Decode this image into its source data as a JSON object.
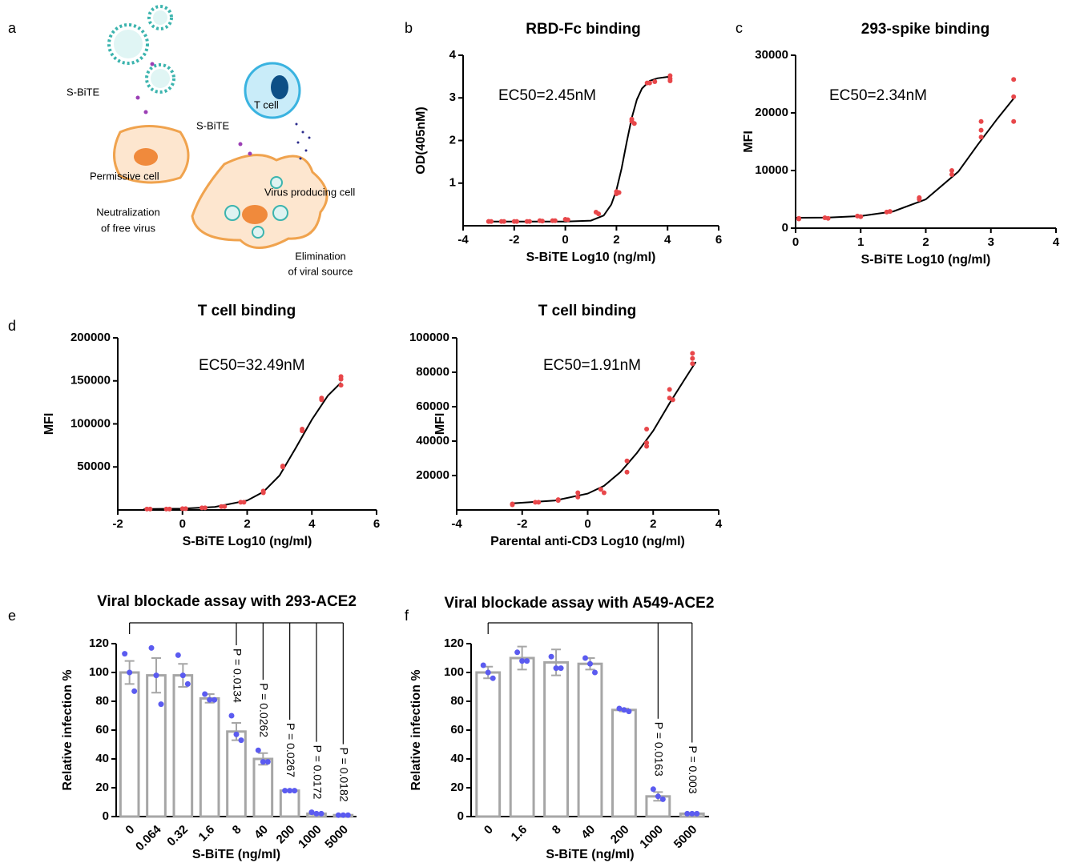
{
  "panel_labels": [
    "a",
    "b",
    "c",
    "d",
    "e",
    "f"
  ],
  "diagram": {
    "s_bite_top": "S-BiTE",
    "s_bite_mid": "S-BiTE",
    "t_cell": "T cell",
    "permissive_cell": "Permissive cell",
    "neutralization": [
      "Neutralization",
      "of free virus"
    ],
    "virus_producing_cell": "Virus producing cell",
    "elimination": [
      "Elimination",
      "of viral source"
    ]
  },
  "chart_data": [
    {
      "type": "scatter",
      "title": "RBD-Fc binding",
      "x_label": "S-BiTE Log10 (ng/ml)",
      "y_label": "OD(405nM)",
      "annotation": "EC50=2.45nM",
      "xlim": [
        -4,
        6
      ],
      "xticks": [
        -4,
        -2,
        0,
        2,
        4,
        6
      ],
      "ylim": [
        0,
        4
      ],
      "yticks": [
        1,
        2,
        3,
        4
      ],
      "color": "#e8474a",
      "curve_color": "#000000",
      "x": [
        -3,
        -3,
        -2.9,
        -2.5,
        -2.4,
        -2,
        -1.9,
        -1.5,
        -1.4,
        -1,
        -0.9,
        -0.5,
        -0.4,
        0,
        0.1,
        1.2,
        1.3,
        2,
        2,
        2.1,
        2.6,
        2.6,
        2.7,
        3.2,
        3.3,
        3.5,
        4.1,
        4.1,
        4.1
      ],
      "values": [
        0.1,
        0.1,
        0.1,
        0.1,
        0.1,
        0.1,
        0.1,
        0.1,
        0.1,
        0.12,
        0.11,
        0.12,
        0.12,
        0.15,
        0.14,
        0.32,
        0.28,
        0.8,
        0.75,
        0.78,
        2.5,
        2.45,
        2.4,
        3.35,
        3.35,
        3.38,
        3.52,
        3.45,
        3.4
      ],
      "curve": {
        "x": [
          -3,
          -1,
          0,
          1,
          1.5,
          1.8,
          2,
          2.2,
          2.4,
          2.6,
          2.8,
          3,
          3.3,
          3.6,
          4.1
        ],
        "values": [
          0.1,
          0.1,
          0.1,
          0.12,
          0.24,
          0.5,
          0.84,
          1.34,
          1.96,
          2.53,
          2.96,
          3.22,
          3.4,
          3.46,
          3.5
        ]
      }
    },
    {
      "type": "scatter",
      "title": "293-spike binding",
      "x_label": "S-BiTE Log10 (ng/ml)",
      "y_label": "MFI",
      "annotation": "EC50=2.34nM",
      "xlim": [
        0,
        4
      ],
      "xticks": [
        0,
        1,
        2,
        3,
        4
      ],
      "ylim": [
        0,
        30000
      ],
      "yticks": [
        0,
        10000,
        20000,
        30000
      ],
      "color": "#e8474a",
      "curve_color": "#000000",
      "x": [
        0.05,
        0.05,
        0.45,
        0.5,
        0.95,
        1.0,
        1.4,
        1.45,
        1.9,
        1.9,
        2.4,
        2.4,
        2.85,
        2.85,
        2.85,
        3.35,
        3.35,
        3.35
      ],
      "values": [
        1700,
        1600,
        1800,
        1700,
        2100,
        2000,
        2800,
        2900,
        5000,
        5300,
        9300,
        10000,
        15800,
        17000,
        18500,
        25800,
        22800,
        18500
      ],
      "curve": {
        "x": [
          0,
          0.5,
          1,
          1.5,
          2,
          2.5,
          2.8,
          3.1,
          3.35
        ],
        "values": [
          1800,
          1850,
          2100,
          2900,
          5000,
          9800,
          14500,
          19000,
          22500
        ]
      }
    },
    {
      "type": "scatter",
      "title": "T cell binding",
      "x_label": "S-BiTE Log10 (ng/ml)",
      "y_label": "MFI",
      "annotation": "EC50=32.49nM",
      "xlim": [
        -2,
        6
      ],
      "xticks": [
        -2,
        0,
        2,
        4,
        6
      ],
      "ylim": [
        0,
        200000
      ],
      "yticks": [
        50000,
        100000,
        150000,
        200000
      ],
      "color": "#e8474a",
      "curve_color": "#000000",
      "x": [
        -1.1,
        -1.0,
        -0.5,
        -0.4,
        0,
        0.1,
        0.6,
        0.7,
        1.2,
        1.3,
        1.8,
        1.9,
        2.5,
        2.5,
        3.1,
        3.1,
        3.7,
        3.7,
        4.3,
        4.3,
        4.9,
        4.9,
        4.9
      ],
      "values": [
        1000,
        1000,
        1000,
        1000,
        1500,
        1500,
        2500,
        2500,
        4000,
        4000,
        9000,
        9000,
        20000,
        22000,
        50000,
        51000,
        92000,
        94000,
        128000,
        130000,
        145000,
        152000,
        155000
      ],
      "curve": {
        "x": [
          -1.2,
          0,
          1,
          2,
          2.5,
          3,
          3.5,
          4,
          4.5,
          4.9
        ],
        "values": [
          1000,
          1500,
          3500,
          11000,
          21000,
          40000,
          72000,
          105000,
          133000,
          148000
        ]
      }
    },
    {
      "type": "scatter",
      "title": "T cell binding",
      "x_label": "Parental anti-CD3 Log10 (ng/ml)",
      "y_label": "MFI",
      "annotation": "EC50=1.91nM",
      "xlim": [
        -4,
        4
      ],
      "xticks": [
        -4,
        -2,
        0,
        2,
        4
      ],
      "ylim": [
        0,
        100000
      ],
      "yticks": [
        20000,
        40000,
        60000,
        80000,
        100000
      ],
      "color": "#e8474a",
      "curve_color": "#000000",
      "x": [
        -2.3,
        -2.3,
        -1.6,
        -1.5,
        -0.9,
        -0.9,
        -0.3,
        -0.3,
        0.4,
        0.5,
        1.2,
        1.2,
        1.8,
        1.8,
        1.8,
        2.5,
        2.5,
        2.6,
        3.2,
        3.2,
        3.2
      ],
      "values": [
        3500,
        3000,
        4500,
        4500,
        6000,
        5500,
        10000,
        7500,
        12000,
        10000,
        28500,
        22000,
        47000,
        39000,
        37000,
        70000,
        65000,
        64000,
        91000,
        88000,
        85000
      ],
      "curve": {
        "x": [
          -2.3,
          -1,
          0,
          0.5,
          1,
          1.5,
          2,
          2.5,
          3,
          3.3
        ],
        "values": [
          3800,
          5500,
          9500,
          14000,
          22000,
          33000,
          46000,
          62000,
          77000,
          86000
        ]
      }
    },
    {
      "type": "bar",
      "title": "Viral blockade assay with 293-ACE2",
      "x_label": "S-BiTE (ng/ml)",
      "y_label": "Relative infection  %",
      "categories": [
        "0",
        "0.064",
        "0.32",
        "1.6",
        "8",
        "40",
        "200",
        "1000",
        "5000"
      ],
      "values": [
        100,
        98,
        98,
        82,
        59,
        40,
        18,
        2,
        1
      ],
      "errors": [
        8,
        12,
        8,
        3,
        6,
        4,
        0.3,
        0.5,
        0.3
      ],
      "points": [
        [
          113,
          100,
          87
        ],
        [
          117,
          98,
          78
        ],
        [
          112,
          98,
          92
        ],
        [
          85,
          81,
          81
        ],
        [
          70,
          57,
          53
        ],
        [
          46,
          38,
          38
        ],
        [
          18,
          18,
          18
        ],
        [
          3,
          2,
          2
        ],
        [
          1,
          1,
          1
        ]
      ],
      "p_labels": [
        null,
        null,
        null,
        null,
        "P = 0.0134",
        "P = 0.0262",
        "P = 0.0267",
        "P = 0.0172",
        "P = 0.0182"
      ],
      "ylim": [
        0,
        120
      ],
      "yticks": [
        0,
        20,
        40,
        60,
        80,
        100,
        120
      ],
      "color": "#a6a6a6",
      "point_color": "#5b5bf0"
    },
    {
      "type": "bar",
      "title": "Viral blockade assay with A549-ACE2",
      "x_label": "S-BiTE (ng/ml)",
      "y_label": "Relative infection  %",
      "categories": [
        "0",
        "1.6",
        "8",
        "40",
        "200",
        "1000",
        "5000"
      ],
      "values": [
        100,
        110,
        107,
        106,
        74,
        14,
        2
      ],
      "errors": [
        4,
        8,
        9,
        4,
        1,
        3,
        0.5
      ],
      "points": [
        [
          105,
          100,
          96
        ],
        [
          114,
          108,
          108
        ],
        [
          111,
          103,
          103
        ],
        [
          110,
          106,
          100
        ],
        [
          75,
          74,
          73
        ],
        [
          19,
          14,
          12
        ],
        [
          2,
          2,
          2
        ]
      ],
      "p_labels": [
        null,
        null,
        null,
        null,
        null,
        "P = 0.0163",
        "P = 0.003"
      ],
      "ylim": [
        0,
        120
      ],
      "yticks": [
        0,
        20,
        40,
        60,
        80,
        100,
        120
      ],
      "color": "#a6a6a6",
      "point_color": "#5b5bf0"
    }
  ]
}
